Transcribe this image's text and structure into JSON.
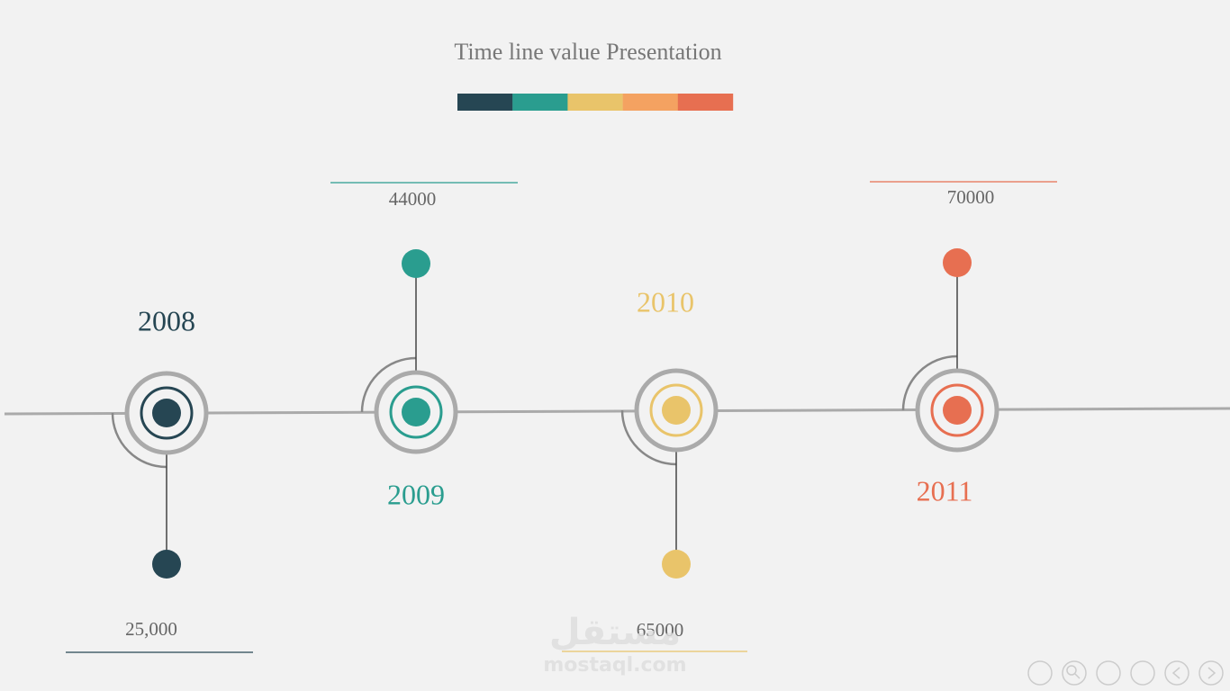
{
  "title": "Time line value Presentation",
  "palette": [
    "#264653",
    "#2a9d8f",
    "#e9c46a",
    "#f4a261",
    "#e76f51"
  ],
  "milestones": [
    {
      "year": "2008",
      "value": "25,000",
      "color": "#264653"
    },
    {
      "year": "2009",
      "value": "44000",
      "color": "#2a9d8f"
    },
    {
      "year": "2010",
      "value": "65000",
      "color": "#e9c46a"
    },
    {
      "year": "2011",
      "value": "70000",
      "color": "#e76f51"
    }
  ],
  "watermark": {
    "arabic": "مستقل",
    "site": "mostaql.com"
  }
}
